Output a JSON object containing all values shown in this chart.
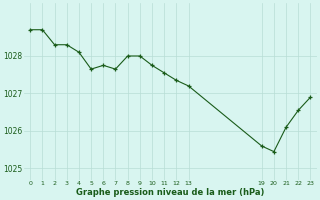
{
  "x_indices": [
    0,
    1,
    2,
    3,
    4,
    5,
    6,
    7,
    8,
    9,
    10,
    11,
    12,
    13,
    19,
    20,
    21,
    22,
    23
  ],
  "pressure": [
    1028.7,
    1028.7,
    1028.3,
    1028.3,
    1028.1,
    1027.65,
    1027.75,
    1027.65,
    1028.0,
    1028.0,
    1027.75,
    1027.55,
    1027.35,
    1027.2,
    1025.6,
    1025.45,
    1026.1,
    1026.55,
    1026.9
  ],
  "line_color": "#1a5c1a",
  "marker_color": "#1a5c1a",
  "bg_color": "#d8f5f0",
  "grid_color": "#b8ddd5",
  "xlabel": "Graphe pression niveau de la mer (hPa)",
  "visible_xticks": [
    0,
    1,
    2,
    3,
    4,
    5,
    6,
    7,
    8,
    9,
    10,
    11,
    12,
    13,
    19,
    20,
    21,
    22,
    23
  ],
  "xtick_labels": [
    "0",
    "1",
    "2",
    "3",
    "4",
    "5",
    "6",
    "7",
    "8",
    "9",
    "10",
    "11",
    "12",
    "13",
    "19",
    "20",
    "21",
    "22",
    "23"
  ],
  "ytick_values": [
    1025,
    1026,
    1027,
    1028
  ],
  "ylim": [
    1024.7,
    1029.4
  ],
  "xlim": [
    -0.5,
    23.5
  ]
}
